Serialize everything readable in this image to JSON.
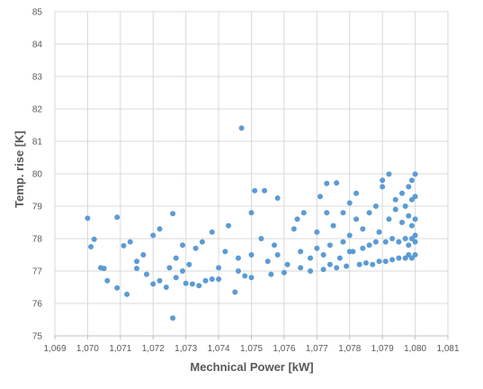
{
  "chart_data": {
    "type": "scatter",
    "xlabel": "Mechnical Power [kW]",
    "ylabel": "Temp. rise [K]",
    "xlim": [
      1.069,
      1.081
    ],
    "ylim": [
      75,
      85
    ],
    "x_ticks": [
      "1,069",
      "1,070",
      "1,071",
      "1,072",
      "1,073",
      "1,074",
      "1,075",
      "1,076",
      "1,077",
      "1,078",
      "1,079",
      "1,080",
      "1,081"
    ],
    "y_ticks": [
      "75",
      "76",
      "77",
      "78",
      "79",
      "80",
      "81",
      "82",
      "83",
      "84",
      "85"
    ],
    "grid": true,
    "legend": "none",
    "marker_color": "#5b9bd5",
    "series": [
      {
        "points": [
          [
            1.07,
            78.63
          ],
          [
            1.0701,
            77.75
          ],
          [
            1.0702,
            77.98
          ],
          [
            1.0704,
            77.1
          ],
          [
            1.0705,
            77.08
          ],
          [
            1.0706,
            76.7
          ],
          [
            1.0709,
            76.48
          ],
          [
            1.0712,
            76.28
          ],
          [
            1.0715,
            77.08
          ],
          [
            1.0717,
            77.5
          ],
          [
            1.0709,
            78.66
          ],
          [
            1.0711,
            77.78
          ],
          [
            1.0713,
            77.9
          ],
          [
            1.0715,
            77.3
          ],
          [
            1.0718,
            76.9
          ],
          [
            1.072,
            76.6
          ],
          [
            1.0722,
            76.7
          ],
          [
            1.0724,
            76.5
          ],
          [
            1.0727,
            77.4
          ],
          [
            1.0729,
            77.8
          ],
          [
            1.072,
            78.1
          ],
          [
            1.0722,
            78.3
          ],
          [
            1.0725,
            77.1
          ],
          [
            1.0727,
            76.8
          ],
          [
            1.0729,
            77.0
          ],
          [
            1.073,
            76.62
          ],
          [
            1.0732,
            76.6
          ],
          [
            1.0734,
            76.55
          ],
          [
            1.0726,
            75.55
          ],
          [
            1.0726,
            78.77
          ],
          [
            1.0731,
            77.2
          ],
          [
            1.0733,
            77.7
          ],
          [
            1.0735,
            77.9
          ],
          [
            1.0736,
            76.7
          ],
          [
            1.0738,
            76.75
          ],
          [
            1.074,
            76.75
          ],
          [
            1.074,
            77.1
          ],
          [
            1.0742,
            77.6
          ],
          [
            1.0738,
            78.2
          ],
          [
            1.0743,
            78.4
          ],
          [
            1.0745,
            76.35
          ],
          [
            1.0746,
            77.4
          ],
          [
            1.0746,
            77.0
          ],
          [
            1.0747,
            81.41
          ],
          [
            1.0748,
            76.85
          ],
          [
            1.075,
            76.8
          ],
          [
            1.075,
            77.5
          ],
          [
            1.075,
            78.8
          ],
          [
            1.0751,
            79.48
          ],
          [
            1.0753,
            78.0
          ],
          [
            1.0754,
            79.48
          ],
          [
            1.0756,
            76.9
          ],
          [
            1.0755,
            77.3
          ],
          [
            1.0758,
            79.25
          ],
          [
            1.0757,
            77.8
          ],
          [
            1.0758,
            77.5
          ],
          [
            1.076,
            76.95
          ],
          [
            1.0761,
            77.2
          ],
          [
            1.0763,
            78.3
          ],
          [
            1.0764,
            78.6
          ],
          [
            1.0765,
            77.1
          ],
          [
            1.0765,
            77.6
          ],
          [
            1.0766,
            78.8
          ],
          [
            1.0768,
            77.0
          ],
          [
            1.0768,
            77.4
          ],
          [
            1.077,
            77.7
          ],
          [
            1.077,
            78.2
          ],
          [
            1.0771,
            79.3
          ],
          [
            1.0772,
            77.05
          ],
          [
            1.0772,
            77.5
          ],
          [
            1.0773,
            78.8
          ],
          [
            1.0773,
            79.7
          ],
          [
            1.0774,
            77.2
          ],
          [
            1.0774,
            77.8
          ],
          [
            1.0775,
            78.4
          ],
          [
            1.0776,
            77.1
          ],
          [
            1.0776,
            79.72
          ],
          [
            1.0777,
            77.4
          ],
          [
            1.0778,
            77.9
          ],
          [
            1.0778,
            78.8
          ],
          [
            1.0779,
            77.15
          ],
          [
            1.078,
            77.6
          ],
          [
            1.078,
            78.1
          ],
          [
            1.078,
            79.1
          ],
          [
            1.0781,
            77.6
          ],
          [
            1.0782,
            78.6
          ],
          [
            1.0782,
            79.4
          ],
          [
            1.0783,
            77.2
          ],
          [
            1.0784,
            77.7
          ],
          [
            1.0784,
            78.3
          ],
          [
            1.0785,
            77.25
          ],
          [
            1.0786,
            77.8
          ],
          [
            1.0786,
            78.8
          ],
          [
            1.0787,
            77.2
          ],
          [
            1.0788,
            77.9
          ],
          [
            1.0788,
            79.0
          ],
          [
            1.0789,
            77.3
          ],
          [
            1.0789,
            78.2
          ],
          [
            1.079,
            79.6
          ],
          [
            1.079,
            79.8
          ],
          [
            1.0791,
            77.3
          ],
          [
            1.0791,
            77.9
          ],
          [
            1.0792,
            78.6
          ],
          [
            1.0792,
            79.99
          ],
          [
            1.0793,
            77.35
          ],
          [
            1.0793,
            78.0
          ],
          [
            1.0794,
            78.9
          ],
          [
            1.0794,
            79.2
          ],
          [
            1.0795,
            77.4
          ],
          [
            1.0795,
            77.9
          ],
          [
            1.0796,
            78.5
          ],
          [
            1.0796,
            79.4
          ],
          [
            1.0797,
            77.4
          ],
          [
            1.0797,
            78.0
          ],
          [
            1.0797,
            79.0
          ],
          [
            1.0798,
            77.5
          ],
          [
            1.0798,
            77.8
          ],
          [
            1.0798,
            78.7
          ],
          [
            1.0798,
            79.6
          ],
          [
            1.0799,
            77.4
          ],
          [
            1.0799,
            78.0
          ],
          [
            1.0799,
            78.4
          ],
          [
            1.0799,
            79.2
          ],
          [
            1.0799,
            79.8
          ],
          [
            1.08,
            77.5
          ],
          [
            1.08,
            78.1
          ],
          [
            1.08,
            78.6
          ],
          [
            1.08,
            79.3
          ],
          [
            1.08,
            79.99
          ],
          [
            1.08,
            77.9
          ]
        ]
      }
    ]
  }
}
